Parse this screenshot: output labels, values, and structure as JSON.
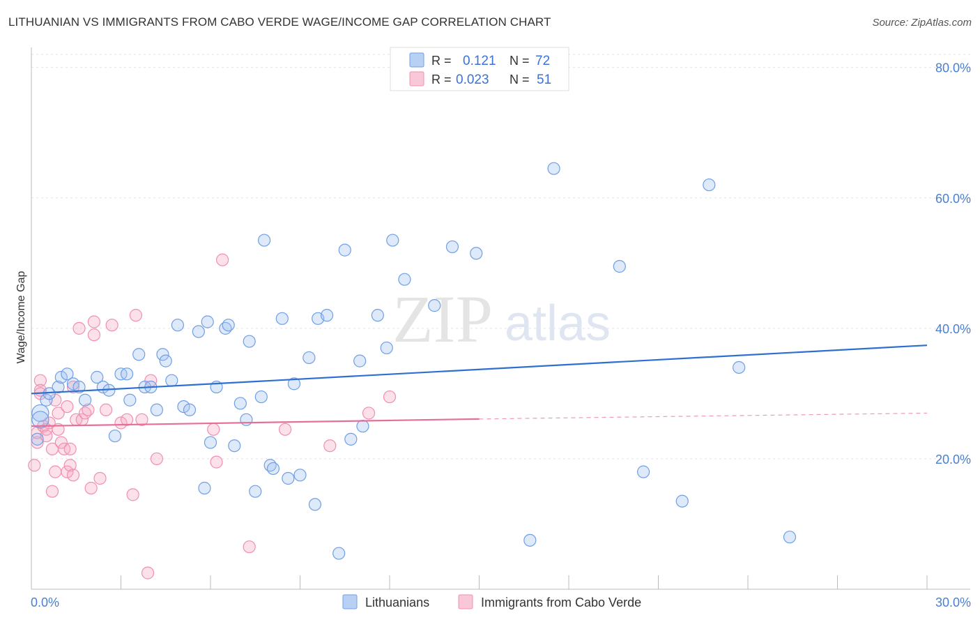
{
  "title": "LITHUANIAN VS IMMIGRANTS FROM CABO VERDE WAGE/INCOME GAP CORRELATION CHART",
  "source": "Source: ZipAtlas.com",
  "watermark": {
    "zip": "ZIP",
    "atlas": "atlas"
  },
  "legend": {
    "rows": [
      {
        "r_label": "R =",
        "r_value": "0.121",
        "n_label": "N =",
        "n_value": "72"
      },
      {
        "r_label": "R =",
        "r_value": "0.023",
        "n_label": "N =",
        "n_value": "51"
      }
    ]
  },
  "chart_data": {
    "type": "scatter",
    "title": "LITHUANIAN VS IMMIGRANTS FROM CABO VERDE WAGE/INCOME GAP CORRELATION CHART",
    "xlabel": "",
    "ylabel": "Wage/Income Gap",
    "xlim": [
      0,
      30
    ],
    "ylim": [
      0,
      82
    ],
    "x_tick_labels": [
      "0.0%",
      "30.0%"
    ],
    "y_ticks": [
      20,
      40,
      60,
      80
    ],
    "y_tick_labels": [
      "20.0%",
      "40.0%",
      "60.0%",
      "80.0%"
    ],
    "colors": {
      "Lithuanians": "#6f9ee6",
      "Immigrants from Cabo Verde": "#f08fb0",
      "blue_line": "#2f6fd0",
      "pink_line": "#e4709a"
    },
    "series": [
      {
        "name": "Lithuanians",
        "r": 0.121,
        "n": 72,
        "trend": {
          "x0": 0,
          "y0": 30.0,
          "x1": 30,
          "y1": 37.4
        },
        "points": [
          [
            0.3,
            27.0
          ],
          [
            0.3,
            26.0
          ],
          [
            0.5,
            29.0
          ],
          [
            0.6,
            30.0
          ],
          [
            0.9,
            31.0
          ],
          [
            1.0,
            32.5
          ],
          [
            1.2,
            33.0
          ],
          [
            1.4,
            31.5
          ],
          [
            1.6,
            31.0
          ],
          [
            1.8,
            29.0
          ],
          [
            2.2,
            32.5
          ],
          [
            2.4,
            31.0
          ],
          [
            2.6,
            30.5
          ],
          [
            2.8,
            23.5
          ],
          [
            3.0,
            33.0
          ],
          [
            3.2,
            33.0
          ],
          [
            3.3,
            29.0
          ],
          [
            3.6,
            36.0
          ],
          [
            3.8,
            31.0
          ],
          [
            4.0,
            31.0
          ],
          [
            4.2,
            27.5
          ],
          [
            4.4,
            36.0
          ],
          [
            4.5,
            35.0
          ],
          [
            4.7,
            32.0
          ],
          [
            4.9,
            40.5
          ],
          [
            5.1,
            28.0
          ],
          [
            5.3,
            27.5
          ],
          [
            5.6,
            39.5
          ],
          [
            5.8,
            15.5
          ],
          [
            5.9,
            41.0
          ],
          [
            6.0,
            22.5
          ],
          [
            6.2,
            31.0
          ],
          [
            6.5,
            40.0
          ],
          [
            6.6,
            40.5
          ],
          [
            6.8,
            22.0
          ],
          [
            7.0,
            28.5
          ],
          [
            7.2,
            26.0
          ],
          [
            7.3,
            38.0
          ],
          [
            7.5,
            15.0
          ],
          [
            7.7,
            29.5
          ],
          [
            7.8,
            53.5
          ],
          [
            8.0,
            19.0
          ],
          [
            8.1,
            18.5
          ],
          [
            8.4,
            41.5
          ],
          [
            8.6,
            17.0
          ],
          [
            8.8,
            31.5
          ],
          [
            9.0,
            17.5
          ],
          [
            9.3,
            35.5
          ],
          [
            9.5,
            13.0
          ],
          [
            9.6,
            41.5
          ],
          [
            9.9,
            42.0
          ],
          [
            10.3,
            5.5
          ],
          [
            10.5,
            52.0
          ],
          [
            10.7,
            23.0
          ],
          [
            11.0,
            35.0
          ],
          [
            11.1,
            25.0
          ],
          [
            11.6,
            42.0
          ],
          [
            11.9,
            37.0
          ],
          [
            12.1,
            53.5
          ],
          [
            12.5,
            47.5
          ],
          [
            13.5,
            43.5
          ],
          [
            14.1,
            52.5
          ],
          [
            14.9,
            51.5
          ],
          [
            16.7,
            7.5
          ],
          [
            17.5,
            64.5
          ],
          [
            19.7,
            49.5
          ],
          [
            20.5,
            18.0
          ],
          [
            21.8,
            13.5
          ],
          [
            22.7,
            62.0
          ],
          [
            23.7,
            34.0
          ],
          [
            25.4,
            8.0
          ],
          [
            0.2,
            23.0
          ]
        ]
      },
      {
        "name": "Immigrants from Cabo Verde",
        "r": 0.023,
        "n": 51,
        "trend": {
          "x0": 0,
          "y0": 25.0,
          "x1": 15,
          "y1": 26.1,
          "dashed_to_x": 30,
          "dashed_to_y": 27.0
        },
        "points": [
          [
            0.1,
            19.0
          ],
          [
            0.2,
            22.5
          ],
          [
            0.2,
            24.0
          ],
          [
            0.3,
            32.0
          ],
          [
            0.3,
            30.5
          ],
          [
            0.4,
            25.0
          ],
          [
            0.5,
            24.5
          ],
          [
            0.5,
            23.5
          ],
          [
            0.6,
            25.5
          ],
          [
            0.7,
            15.0
          ],
          [
            0.7,
            21.5
          ],
          [
            0.8,
            18.0
          ],
          [
            0.8,
            29.0
          ],
          [
            0.9,
            27.0
          ],
          [
            0.9,
            24.5
          ],
          [
            1.0,
            22.5
          ],
          [
            1.1,
            21.5
          ],
          [
            1.2,
            18.0
          ],
          [
            1.3,
            21.5
          ],
          [
            1.3,
            19.0
          ],
          [
            1.4,
            17.5
          ],
          [
            1.4,
            31.0
          ],
          [
            1.5,
            26.0
          ],
          [
            1.6,
            40.0
          ],
          [
            1.7,
            26.0
          ],
          [
            1.8,
            27.0
          ],
          [
            1.9,
            27.5
          ],
          [
            2.0,
            15.5
          ],
          [
            2.1,
            39.0
          ],
          [
            2.1,
            41.0
          ],
          [
            2.3,
            17.0
          ],
          [
            2.5,
            27.5
          ],
          [
            2.7,
            40.5
          ],
          [
            3.0,
            25.5
          ],
          [
            3.2,
            26.0
          ],
          [
            3.4,
            14.5
          ],
          [
            3.5,
            42.0
          ],
          [
            3.7,
            26.0
          ],
          [
            3.9,
            2.5
          ],
          [
            4.0,
            32.0
          ],
          [
            4.2,
            20.0
          ],
          [
            6.1,
            24.5
          ],
          [
            6.2,
            19.5
          ],
          [
            6.4,
            50.5
          ],
          [
            7.3,
            6.5
          ],
          [
            8.5,
            24.5
          ],
          [
            10.0,
            22.0
          ],
          [
            11.3,
            27.0
          ],
          [
            12.0,
            29.5
          ],
          [
            0.3,
            30.0
          ],
          [
            1.2,
            28.0
          ]
        ]
      }
    ],
    "legend_placement": "top-center",
    "bottom_legend": [
      "Lithuanians",
      "Immigrants from Cabo Verde"
    ]
  }
}
